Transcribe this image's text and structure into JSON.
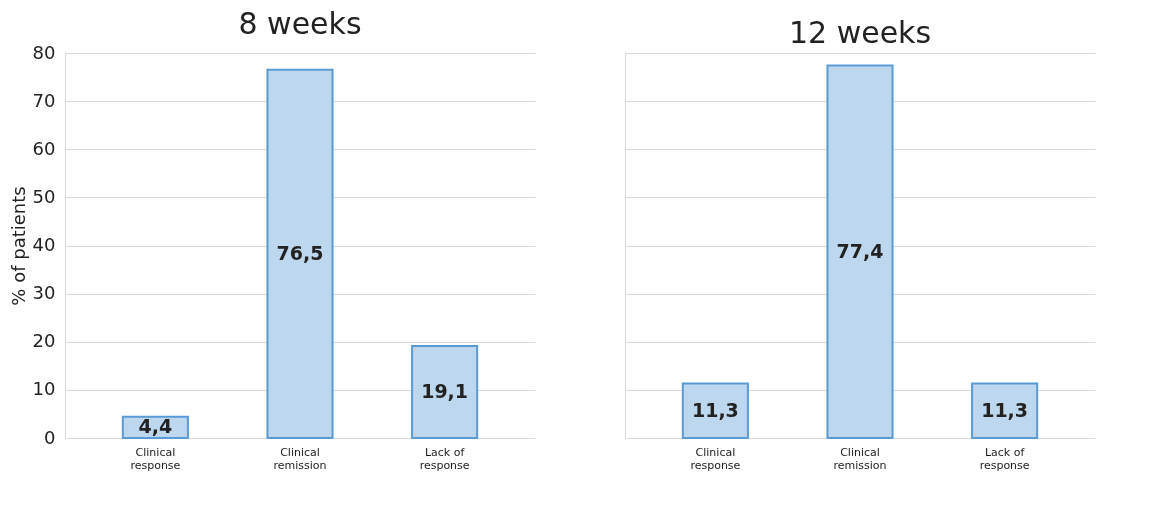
{
  "chart_data": [
    {
      "type": "bar",
      "title": "8 weeks",
      "ylabel": "% of patients",
      "categories": [
        "Clinical response",
        "Clinical remission",
        "Lack of response"
      ],
      "values": [
        4.4,
        76.5,
        19.1
      ],
      "value_labels": [
        "4,4",
        "76,5",
        "19,1"
      ],
      "color": "#bdd7ee",
      "ylim": [
        0,
        80
      ],
      "yticks": [
        0,
        10,
        20,
        30,
        40,
        50,
        60,
        70,
        80
      ],
      "grid": "y"
    },
    {
      "type": "bar",
      "title": "12 weeks",
      "categories": [
        "Clinical response",
        "Clinical remission",
        "Lack of response"
      ],
      "values": [
        11.3,
        77.4,
        11.3
      ],
      "value_labels": [
        "11,3",
        "77,4",
        "11,3"
      ],
      "color": "#bdd7ee",
      "ylim": [
        0,
        80
      ],
      "yticks": [
        0,
        10,
        20,
        30,
        40,
        50,
        60,
        70,
        80
      ],
      "grid": "y",
      "tick_labels": "x"
    }
  ]
}
